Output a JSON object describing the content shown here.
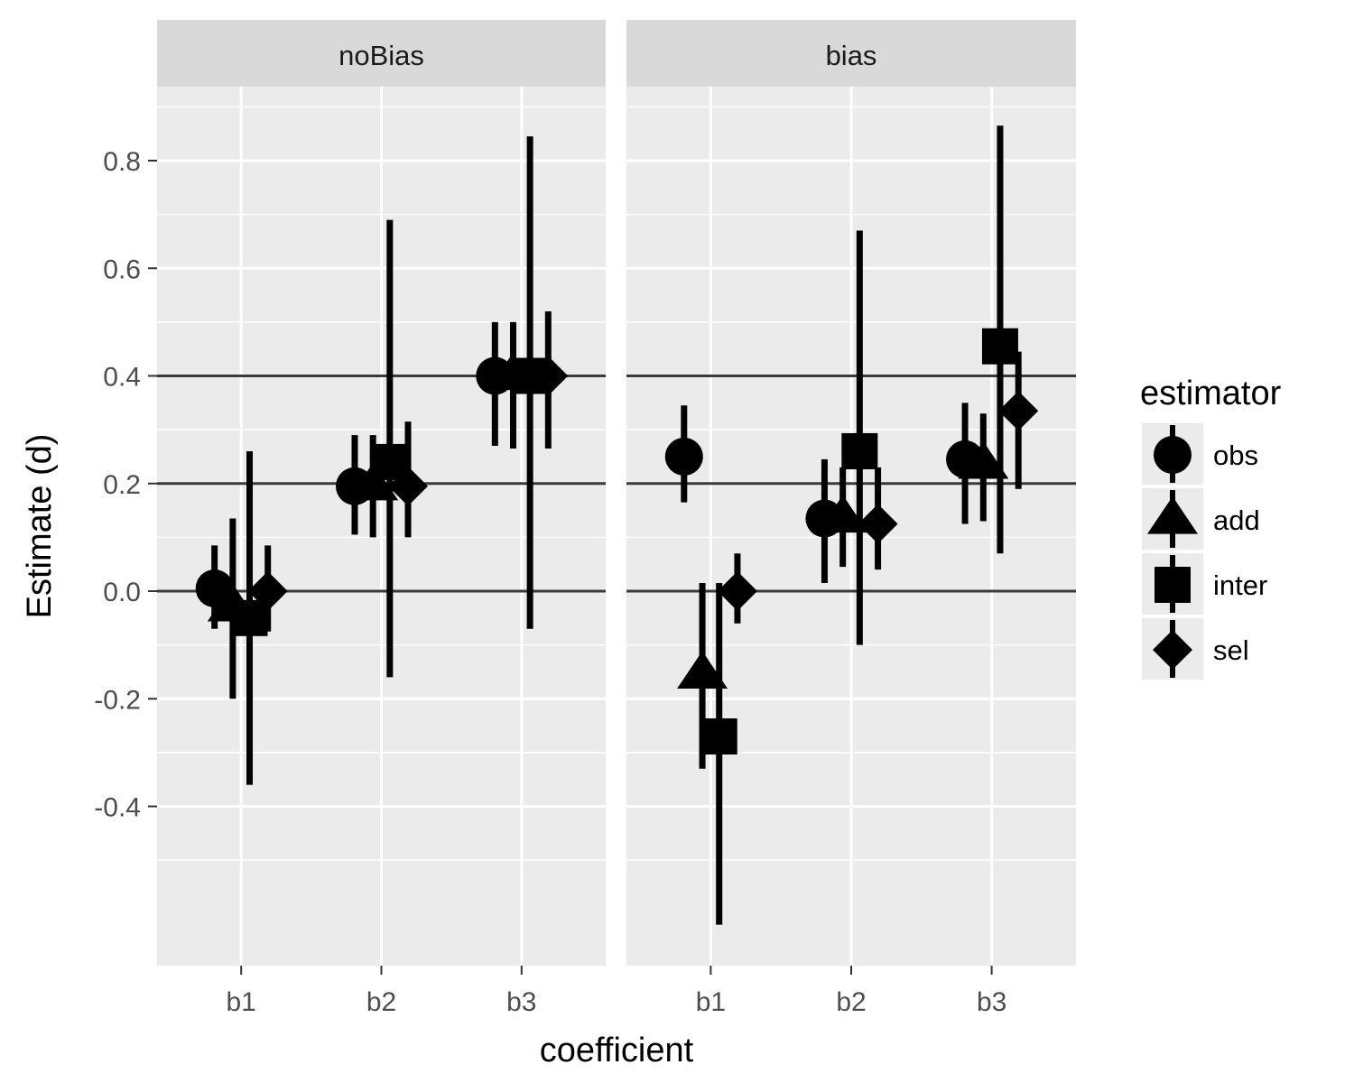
{
  "chart_data": {
    "type": "scatter",
    "xlabel": "coefficient",
    "ylabel": "Estimate (d)",
    "categories": [
      "b1",
      "b2",
      "b3"
    ],
    "yticks": [
      -0.4,
      -0.2,
      0.0,
      0.2,
      0.4,
      0.6,
      0.8
    ],
    "ytick_labels": [
      "-0.4",
      "-0.2",
      "0.0",
      "0.2",
      "0.4",
      "0.6",
      "0.8"
    ],
    "ylim": [
      -0.69,
      0.95
    ],
    "reference_lines": [
      0.0,
      0.2,
      0.4
    ],
    "grid": true,
    "legend": {
      "title": "estimator",
      "placement": "right",
      "items": [
        {
          "label": "obs",
          "shape": "circle-icon"
        },
        {
          "label": "add",
          "shape": "triangle-icon"
        },
        {
          "label": "inter",
          "shape": "square-icon"
        },
        {
          "label": "sel",
          "shape": "diamond-icon"
        }
      ]
    },
    "panels": [
      {
        "label": "noBias",
        "series": [
          {
            "estimator": "obs",
            "values": [
              0.005,
              0.195,
              0.4
            ],
            "lower": [
              -0.07,
              0.105,
              0.27
            ],
            "upper": [
              0.085,
              0.29,
              0.5
            ]
          },
          {
            "estimator": "add",
            "values": [
              -0.03,
              0.195,
              0.4
            ],
            "lower": [
              -0.2,
              0.1,
              0.265
            ],
            "upper": [
              0.135,
              0.29,
              0.5
            ]
          },
          {
            "estimator": "inter",
            "values": [
              -0.05,
              0.24,
              0.4
            ],
            "lower": [
              -0.36,
              -0.16,
              -0.07
            ],
            "upper": [
              0.26,
              0.69,
              0.845
            ]
          },
          {
            "estimator": "sel",
            "values": [
              0.0,
              0.195,
              0.4
            ],
            "lower": [
              -0.075,
              0.1,
              0.265
            ],
            "upper": [
              0.085,
              0.315,
              0.52
            ]
          }
        ]
      },
      {
        "label": "bias",
        "series": [
          {
            "estimator": "obs",
            "values": [
              0.25,
              0.135,
              0.245
            ],
            "lower": [
              0.165,
              0.015,
              0.125
            ],
            "upper": [
              0.345,
              0.245,
              0.35
            ]
          },
          {
            "estimator": "add",
            "values": [
              -0.155,
              0.135,
              0.235
            ],
            "lower": [
              -0.33,
              0.045,
              0.13
            ],
            "upper": [
              0.015,
              0.23,
              0.33
            ]
          },
          {
            "estimator": "inter",
            "values": [
              -0.27,
              0.26,
              0.455
            ],
            "lower": [
              -0.62,
              -0.1,
              0.07
            ],
            "upper": [
              0.015,
              0.67,
              0.865
            ]
          },
          {
            "estimator": "sel",
            "values": [
              0.0,
              0.125,
              0.335
            ],
            "lower": [
              -0.06,
              0.04,
              0.19
            ],
            "upper": [
              0.07,
              0.23,
              0.445
            ]
          }
        ]
      }
    ]
  }
}
